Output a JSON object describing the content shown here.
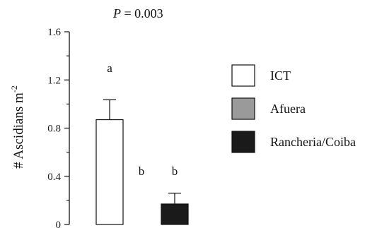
{
  "chart_data": {
    "type": "bar",
    "title": {
      "italic": "P",
      "rest": " = 0.003"
    },
    "ylabel": {
      "main": "# Ascidians m",
      "sup": "-2"
    },
    "ylim": [
      0,
      1.6
    ],
    "yticks": [
      "0",
      "0.4",
      "0.8",
      "1.2",
      "1.6"
    ],
    "tick_values": [
      0,
      0.4,
      0.8,
      1.2,
      1.6
    ],
    "minor_ticks": [
      0.2,
      0.6,
      1.0,
      1.4
    ],
    "categories": [
      "ICT",
      "Afuera",
      "Rancheria/Coiba"
    ],
    "values": [
      0.87,
      0.0,
      0.17
    ],
    "errors": [
      0.165,
      0.0,
      0.09
    ],
    "significance": [
      "a",
      "b",
      "b"
    ],
    "colors": [
      "#ffffff",
      "#9a9a9a",
      "#1a1a1a"
    ],
    "legend": [
      "ICT",
      "Afuera",
      "Rancheria/Coiba"
    ],
    "legend_position": "right",
    "grid": false
  }
}
